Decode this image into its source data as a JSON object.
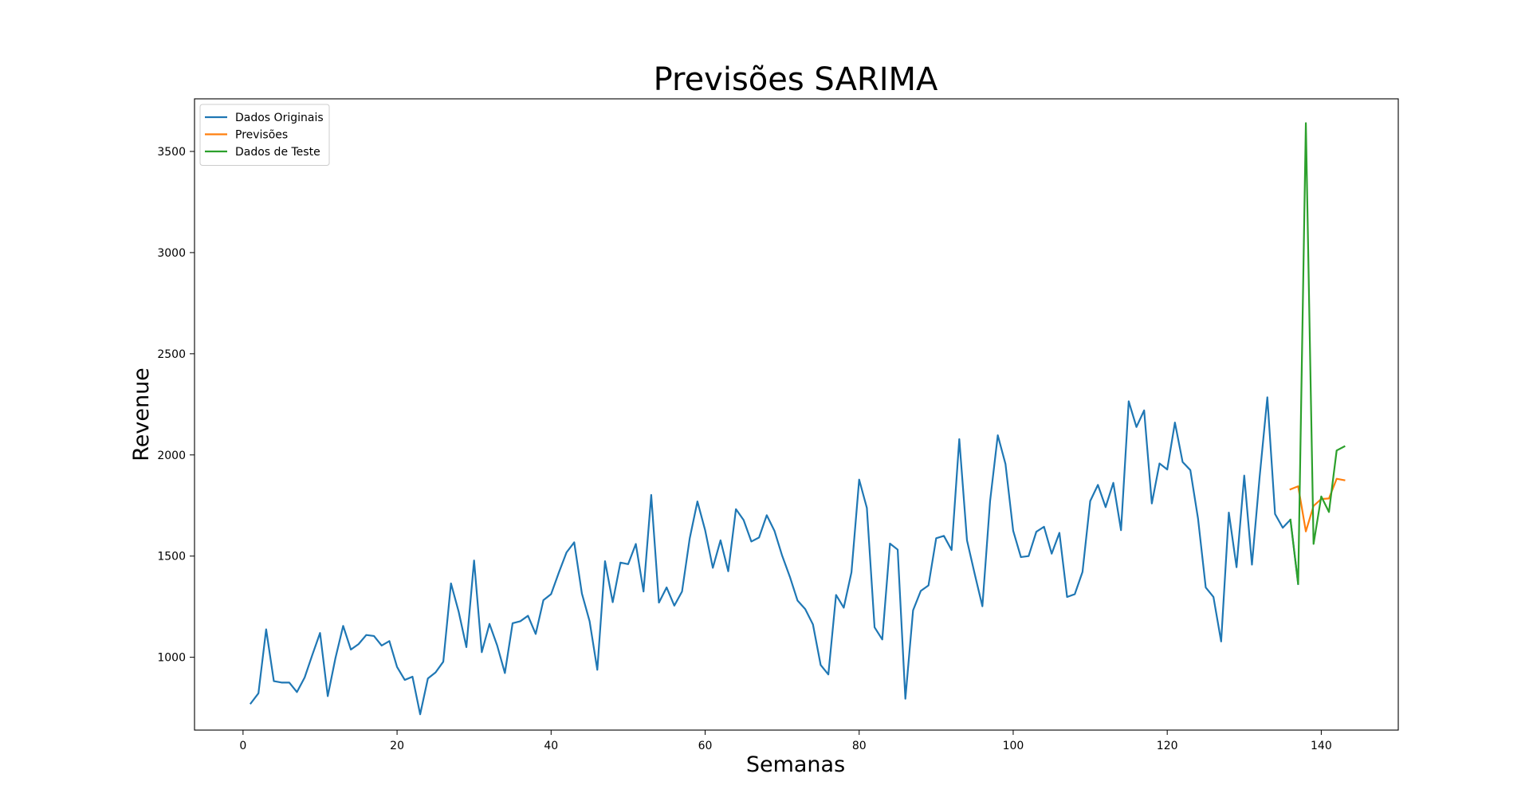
{
  "chart_data": {
    "type": "line",
    "title": "Previsões SARIMA",
    "xlabel": "Semanas",
    "ylabel": "Revenue",
    "xlim": [
      -6.3,
      150.0
    ],
    "ylim": [
      640,
      3760
    ],
    "xticks": [
      0,
      20,
      40,
      60,
      80,
      100,
      120,
      140
    ],
    "yticks": [
      1000,
      1500,
      2000,
      2500,
      3000,
      3500
    ],
    "grid": false,
    "legend_position": "top-left",
    "series": [
      {
        "name": "Dados Originais",
        "color": "#1f77b4",
        "x": [
          1,
          2,
          3,
          4,
          5,
          6,
          7,
          8,
          9,
          10,
          11,
          12,
          13,
          14,
          15,
          16,
          17,
          18,
          19,
          20,
          21,
          22,
          23,
          24,
          25,
          26,
          27,
          28,
          29,
          30,
          31,
          32,
          33,
          34,
          35,
          36,
          37,
          38,
          39,
          40,
          41,
          42,
          43,
          44,
          45,
          46,
          47,
          48,
          49,
          50,
          51,
          52,
          53,
          54,
          55,
          56,
          57,
          58,
          59,
          60,
          61,
          62,
          63,
          64,
          65,
          66,
          67,
          68,
          69,
          70,
          71,
          72,
          73,
          74,
          75,
          76,
          77,
          78,
          79,
          80,
          81,
          82,
          83,
          84,
          85,
          86,
          87,
          88,
          89,
          90,
          91,
          92,
          93,
          94,
          95,
          96,
          97,
          98,
          99,
          100,
          101,
          102,
          103,
          104,
          105,
          106,
          107,
          108,
          109,
          110,
          111,
          112,
          113,
          114,
          115,
          116,
          117,
          118,
          119,
          120,
          121,
          122,
          123,
          124,
          125,
          126,
          127,
          128,
          129,
          130,
          131,
          132,
          133,
          134,
          135,
          136,
          137
        ],
        "values": [
          772,
          822,
          1138,
          882,
          875,
          875,
          828,
          900,
          1012,
          1120,
          808,
          996,
          1155,
          1038,
          1065,
          1110,
          1105,
          1058,
          1080,
          952,
          888,
          904,
          718,
          895,
          925,
          978,
          1365,
          1225,
          1050,
          1478,
          1025,
          1165,
          1058,
          922,
          1168,
          1178,
          1205,
          1115,
          1282,
          1312,
          1418,
          1518,
          1568,
          1315,
          1178,
          938,
          1475,
          1272,
          1468,
          1460,
          1560,
          1325,
          1802,
          1270,
          1345,
          1255,
          1325,
          1588,
          1770,
          1628,
          1442,
          1578,
          1425,
          1732,
          1678,
          1572,
          1592,
          1702,
          1625,
          1502,
          1398,
          1280,
          1238,
          1162,
          962,
          915,
          1308,
          1245,
          1420,
          1878,
          1738,
          1148,
          1088,
          1562,
          1532,
          795,
          1232,
          1328,
          1355,
          1588,
          1600,
          1530,
          2078,
          1578,
          1412,
          1252,
          1772,
          2097,
          1955,
          1625,
          1495,
          1500,
          1620,
          1645,
          1512,
          1615,
          1298,
          1312,
          1422,
          1772,
          1852,
          1742,
          1862,
          1628,
          2265,
          2138,
          2220,
          1760,
          1958,
          1928,
          2160,
          1965,
          1925,
          1685,
          1345,
          1298,
          1078,
          1715,
          1445,
          1898,
          1458,
          1892,
          2285,
          1708,
          1640,
          1680,
          1362
        ]
      },
      {
        "name": "Previsões",
        "color": "#ff7f0e",
        "x": [
          136,
          137,
          138,
          139,
          140,
          141,
          142,
          143
        ],
        "values": [
          1830,
          1845,
          1622,
          1748,
          1782,
          1785,
          1882,
          1875
        ]
      },
      {
        "name": "Dados de Teste",
        "color": "#2ca02c",
        "x": [
          136,
          137,
          138,
          139,
          140,
          141,
          142,
          143
        ],
        "values": [
          1680,
          1362,
          3640,
          1560,
          1795,
          1718,
          2022,
          2042
        ]
      }
    ]
  }
}
